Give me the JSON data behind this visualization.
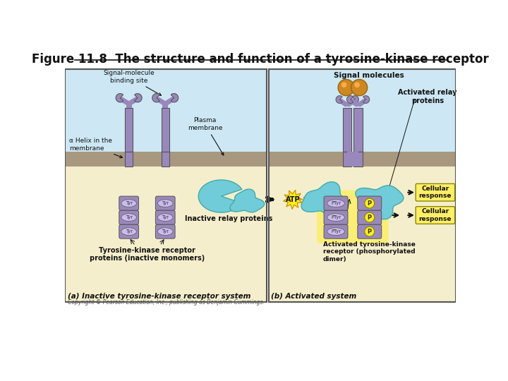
{
  "title": "Figure 11.8  The structure and function of a tyrosine-kinase receptor",
  "title_fontsize": 12,
  "bg_color": "#ffffff",
  "sky_color": "#cde8f4",
  "membrane_color": "#a89880",
  "cytoplasm_color": "#f5eecc",
  "receptor_color": "#9988bb",
  "relay_inactive_color": "#70ccd8",
  "relay_active_color": "#cc7722",
  "tyr_color": "#ccbbee",
  "atp_color": "#ffee22",
  "p_color": "#ffee22",
  "cellular_response_color": "#ffee66",
  "label_a": "(a) Inactive tyrosine-kinase receptor system",
  "label_b": "(b) Activated system",
  "copyright": "Copyright © Pearson Education, Inc., publishing as Benjamin Cummings."
}
